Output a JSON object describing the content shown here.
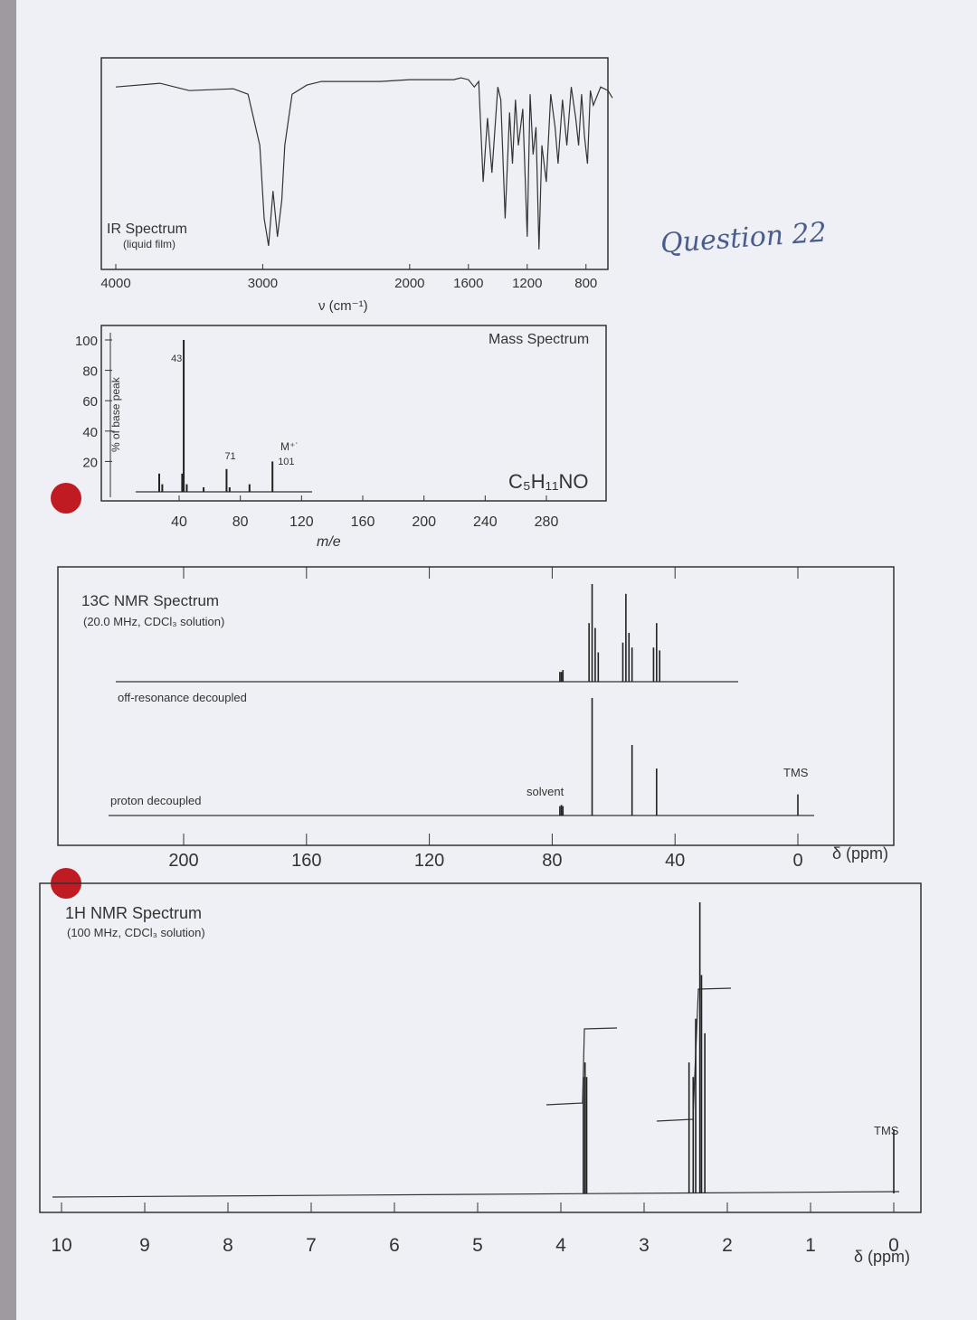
{
  "handwritten_note": "Question 22",
  "chart_data": [
    {
      "type": "line",
      "title": "IR Spectrum",
      "subtitle": "(liquid film)",
      "xlabel": "ν (cm⁻¹)",
      "xlim": [
        4000,
        600
      ],
      "x_ticks": [
        "4000",
        "3000",
        "2000",
        "1600",
        "1200",
        "800"
      ],
      "x": [
        4000,
        3700,
        3500,
        3200,
        3100,
        3020,
        2990,
        2960,
        2930,
        2900,
        2870,
        2850,
        2800,
        2700,
        2600,
        2400,
        2200,
        2000,
        1800,
        1700,
        1650,
        1600,
        1560,
        1530,
        1500,
        1470,
        1440,
        1400,
        1380,
        1350,
        1320,
        1300,
        1280,
        1260,
        1230,
        1200,
        1180,
        1160,
        1140,
        1120,
        1100,
        1070,
        1040,
        1010,
        990,
        960,
        930,
        900,
        870,
        850,
        830,
        810,
        790,
        770,
        750,
        700,
        650,
        620
      ],
      "series": [
        {
          "values": [
            92,
            94,
            90,
            91,
            88,
            60,
            20,
            5,
            35,
            10,
            30,
            60,
            88,
            93,
            95,
            95,
            95,
            96,
            96,
            96,
            97,
            96,
            92,
            95,
            40,
            75,
            45,
            92,
            85,
            20,
            78,
            50,
            85,
            60,
            80,
            10,
            88,
            55,
            70,
            3,
            60,
            40,
            88,
            70,
            50,
            85,
            60,
            92,
            75,
            60,
            88,
            65,
            50,
            90,
            82,
            92,
            90,
            86
          ]
        }
      ]
    },
    {
      "type": "bar",
      "title": "Mass Spectrum",
      "xlabel": "m/e",
      "ylabel": "% of base peak",
      "xlim": [
        20,
        300
      ],
      "ylim": [
        0,
        100
      ],
      "x_ticks": [
        "40",
        "80",
        "120",
        "160",
        "200",
        "240",
        "280"
      ],
      "y_ticks": [
        "100",
        "80",
        "60",
        "40",
        "20"
      ],
      "formula": "C₅H₁₁NO",
      "molecular_ion_label": "M⁺˙",
      "peak_labels": [
        "43",
        "71",
        "101"
      ],
      "x": [
        27,
        29,
        42,
        43,
        45,
        56,
        71,
        73,
        86,
        101
      ],
      "values": [
        12,
        5,
        12,
        100,
        5,
        3,
        15,
        3,
        5,
        20
      ]
    },
    {
      "type": "line",
      "title": "13C NMR Spectrum",
      "subtitle": "(20.0 MHz, CDCl₃ solution)",
      "xlabel": "δ (ppm)",
      "xlim": [
        220,
        0
      ],
      "x_ticks": [
        "200",
        "160",
        "120",
        "80",
        "40",
        "0"
      ],
      "solvent_label": "solvent",
      "reference_label": "TMS",
      "series": [
        {
          "name": "off-resonance decoupled",
          "x": [
            77,
            76.5,
            77.5,
            68,
            67,
            66,
            65,
            57,
            56,
            55,
            54,
            47,
            46,
            45
          ],
          "values": [
            10,
            12,
            10,
            60,
            100,
            55,
            30,
            40,
            90,
            50,
            35,
            35,
            60,
            32
          ]
        },
        {
          "name": "proton decoupled",
          "x": [
            77.5,
            77,
            76.5,
            67,
            54,
            46,
            0
          ],
          "values": [
            8,
            9,
            8,
            100,
            60,
            40,
            18
          ]
        }
      ]
    },
    {
      "type": "line",
      "title": "1H NMR Spectrum",
      "subtitle": "(100 MHz, CDCl₃ solution)",
      "xlabel": "δ (ppm)",
      "xlim": [
        10,
        0
      ],
      "x_ticks": [
        "10",
        "9",
        "8",
        "7",
        "6",
        "5",
        "4",
        "3",
        "2",
        "1",
        "0"
      ],
      "reference_label": "TMS",
      "x": [
        3.73,
        3.71,
        3.69,
        2.46,
        2.41,
        2.38,
        2.33,
        2.31,
        2.27,
        0
      ],
      "values": [
        40,
        45,
        40,
        45,
        40,
        60,
        100,
        75,
        55,
        22
      ]
    }
  ]
}
